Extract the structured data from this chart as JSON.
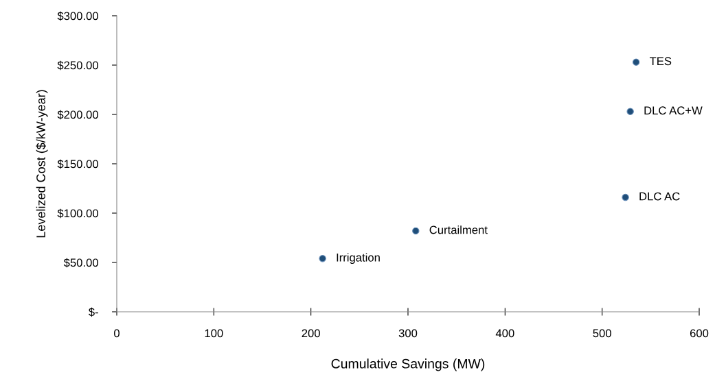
{
  "chart_data": {
    "type": "scatter",
    "xlabel": "Cumulative Savings (MW)",
    "ylabel": "Levelized Cost ($/kW-year)",
    "x": [
      212,
      308,
      524,
      529,
      535
    ],
    "values": [
      54,
      82,
      116,
      203,
      253
    ],
    "color": "#1f4e79",
    "marker": "circle",
    "grid": false,
    "legend": false,
    "xlim": [
      0,
      600
    ],
    "xticks": [
      0,
      100,
      200,
      300,
      400,
      500,
      600
    ],
    "ylim": [
      0,
      300
    ],
    "yticks": [
      {
        "value": 0,
        "label": "$-"
      },
      {
        "value": 50,
        "label": "$50.00"
      },
      {
        "value": 100,
        "label": "$100.00"
      },
      {
        "value": 150,
        "label": "$150.00"
      },
      {
        "value": 200,
        "label": "$200.00"
      },
      {
        "value": 250,
        "label": "$250.00"
      },
      {
        "value": 300,
        "label": "$300.00"
      }
    ],
    "annotations": [
      {
        "text": "Irrigation",
        "x": 212,
        "y": 54
      },
      {
        "text": "Curtailment",
        "x": 308,
        "y": 82
      },
      {
        "text": "DLC AC",
        "x": 524,
        "y": 116
      },
      {
        "text": "DLC AC+W",
        "x": 529,
        "y": 203
      },
      {
        "text": "TES",
        "x": 535,
        "y": 253
      }
    ]
  }
}
